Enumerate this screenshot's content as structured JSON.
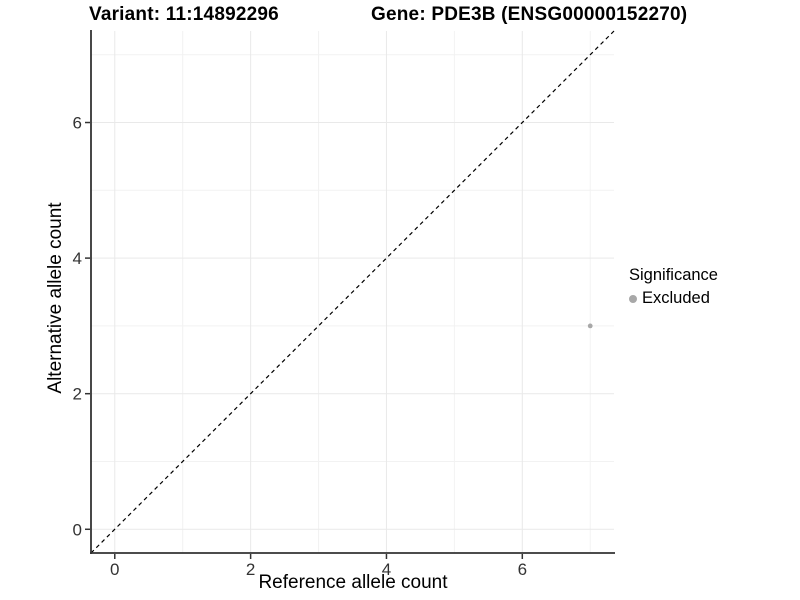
{
  "chart_data": {
    "type": "scatter",
    "title_left": "Variant: 11:14892296",
    "title_right": "Gene: PDE3B (ENSG00000152270)",
    "xlabel": "Reference allele count",
    "ylabel": "Alternative allele count",
    "xlim": [
      -0.35,
      7.35
    ],
    "ylim": [
      -0.35,
      7.35
    ],
    "x_ticks": [
      0,
      2,
      4,
      6
    ],
    "y_ticks": [
      0,
      2,
      4,
      6
    ],
    "x_minor_gridlines": [
      1,
      3,
      5,
      7
    ],
    "y_minor_gridlines": [
      1,
      3,
      5,
      7
    ],
    "grid": "on",
    "reference_line": {
      "type": "identity_y_equals_x",
      "style": "dashed",
      "color": "#000000"
    },
    "series": [
      {
        "name": "Excluded",
        "color": "#a8a8a8",
        "points": [
          {
            "x": 7,
            "y": 3
          }
        ]
      }
    ],
    "legend": {
      "position": "right",
      "title": "Significance",
      "entries": [
        {
          "label": "Excluded",
          "color": "#a8a8a8"
        }
      ]
    },
    "colors": {
      "background": "#ffffff",
      "axis_line": "#333333",
      "tick_label": "#333333",
      "grid_major": "#e9e9e9",
      "grid_minor": "#f2f2f2"
    }
  }
}
